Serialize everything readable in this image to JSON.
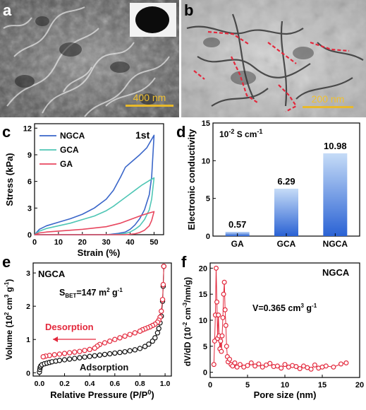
{
  "panels": {
    "a": {
      "letter": "a",
      "scalebar": "400 nm"
    },
    "b": {
      "letter": "b",
      "scalebar": "200 nm"
    },
    "c": {
      "letter": "c"
    },
    "d": {
      "letter": "d"
    },
    "e": {
      "letter": "e"
    },
    "f": {
      "letter": "f"
    }
  },
  "colors": {
    "ngca": "#3a66c9",
    "gca": "#4fc6b5",
    "ga": "#e8475f",
    "red": "#e3283c",
    "black": "#111111",
    "barLight": "#bcd6f5",
    "barDark": "#2d6ad6"
  },
  "chart_data": [
    {
      "id": "c",
      "type": "line",
      "xlabel": "Strain (%)",
      "ylabel": "Stress (kPa)",
      "xlim": [
        0,
        54
      ],
      "ylim": [
        0,
        12.5
      ],
      "xticks": [
        0,
        10,
        20,
        30,
        40,
        50
      ],
      "yticks": [
        0,
        3,
        6,
        9,
        12
      ],
      "annotation": "1st",
      "legend": [
        "NGCA",
        "GCA",
        "GA"
      ],
      "series": [
        {
          "name": "NGCA",
          "color": "#3a66c9",
          "x": [
            0,
            2,
            5,
            10,
            15,
            20,
            25,
            30,
            33,
            36,
            38,
            41,
            44,
            47,
            50,
            49,
            48,
            46,
            44,
            42,
            40,
            38,
            35,
            32,
            30,
            25,
            20,
            15,
            10,
            5,
            2,
            0
          ],
          "y": [
            0,
            0.6,
            1.0,
            1.4,
            1.8,
            2.3,
            3.0,
            4.0,
            5.0,
            6.5,
            7.6,
            8.3,
            9.0,
            9.8,
            11.2,
            6.5,
            4.5,
            2.8,
            1.8,
            1.1,
            0.6,
            0.3,
            0.15,
            0.05,
            0,
            0,
            0,
            0,
            0,
            0,
            0,
            0
          ]
        },
        {
          "name": "GCA",
          "color": "#4fc6b5",
          "x": [
            0,
            2,
            5,
            10,
            15,
            20,
            25,
            30,
            33,
            36,
            39,
            42,
            45,
            48,
            50,
            49,
            48,
            46,
            44,
            42,
            40,
            38,
            35,
            32,
            30,
            25,
            20,
            15,
            10,
            5,
            2,
            0
          ],
          "y": [
            0,
            0.4,
            0.7,
            1.0,
            1.3,
            1.7,
            2.1,
            2.7,
            3.2,
            3.8,
            4.4,
            5.0,
            5.6,
            6.1,
            6.4,
            4.0,
            2.8,
            1.7,
            1.0,
            0.6,
            0.3,
            0.15,
            0.05,
            0,
            0,
            0,
            0,
            0,
            0,
            0,
            0,
            0
          ]
        },
        {
          "name": "GA",
          "color": "#e8475f",
          "x": [
            0,
            2,
            5,
            10,
            15,
            20,
            25,
            30,
            33,
            36,
            39,
            42,
            45,
            48,
            50,
            49,
            48,
            46,
            44,
            42,
            40,
            38,
            35,
            32,
            30,
            25,
            20,
            15,
            10,
            5,
            2,
            0
          ],
          "y": [
            0,
            0.2,
            0.3,
            0.4,
            0.5,
            0.6,
            0.75,
            0.9,
            1.1,
            1.3,
            1.6,
            1.9,
            2.2,
            2.45,
            2.6,
            1.6,
            1.0,
            0.5,
            0.25,
            0.1,
            0.05,
            0,
            0,
            0,
            0,
            0,
            0,
            0,
            0,
            0,
            0,
            0
          ]
        }
      ]
    },
    {
      "id": "d",
      "type": "bar",
      "ylabel": "Electronic conductivity",
      "unit": "10",
      "unit_exp": "-2",
      "unit_rest": " S cm",
      "unit_exp2": "-1",
      "categories": [
        "GA",
        "GCA",
        "NGCA"
      ],
      "values": [
        0.57,
        6.29,
        10.98
      ],
      "value_labels": [
        "0.57",
        "6.29",
        "10.98"
      ],
      "ylim": [
        0,
        15
      ],
      "yticks": [
        0,
        5,
        10,
        15
      ]
    },
    {
      "id": "e",
      "type": "scatter",
      "xlabel": "Relative Pressure (P/P",
      "xlabel_sup": "0",
      "xlabel_end": ")",
      "ylabel": "Volume (10",
      "ylabel_sup": "2",
      "ylabel_mid": " cm",
      "ylabel_sup2": "3",
      "ylabel_mid2": " g",
      "ylabel_sup3": "-1",
      "ylabel_end": ")",
      "xlim": [
        -0.05,
        1.05
      ],
      "ylim": [
        -0.1,
        3.3
      ],
      "xticks": [
        0.0,
        0.2,
        0.4,
        0.6,
        0.8,
        1.0
      ],
      "xtick_labels": [
        "0.0",
        "0.2",
        "0.4",
        "0.6",
        "0.8",
        "1.0"
      ],
      "yticks": [
        0,
        1,
        2,
        3
      ],
      "title": "NGCA",
      "sbet_pre": "S",
      "sbet_sub": "BET",
      "sbet_mid": "=147 m",
      "sbet_sup": "2",
      "sbet_mid2": " g",
      "sbet_sup2": "-1",
      "annotations": [
        "Desorption",
        "Adsorption"
      ],
      "series": [
        {
          "name": "Adsorption",
          "color": "#111111",
          "x": [
            0.0,
            0.003,
            0.006,
            0.01,
            0.02,
            0.04,
            0.06,
            0.08,
            0.1,
            0.13,
            0.16,
            0.2,
            0.24,
            0.28,
            0.32,
            0.36,
            0.4,
            0.44,
            0.48,
            0.52,
            0.56,
            0.6,
            0.64,
            0.68,
            0.72,
            0.76,
            0.8,
            0.84,
            0.87,
            0.9,
            0.92,
            0.94,
            0.95,
            0.96,
            0.97,
            0.98,
            0.985,
            0.99
          ],
          "y": [
            0.02,
            0.1,
            0.16,
            0.2,
            0.24,
            0.27,
            0.29,
            0.31,
            0.33,
            0.35,
            0.37,
            0.39,
            0.41,
            0.43,
            0.45,
            0.47,
            0.49,
            0.51,
            0.53,
            0.55,
            0.57,
            0.59,
            0.61,
            0.63,
            0.66,
            0.69,
            0.73,
            0.79,
            0.86,
            0.95,
            1.05,
            1.2,
            1.33,
            1.5,
            1.7,
            2.15,
            2.6,
            3.2
          ]
        },
        {
          "name": "Desorption",
          "color": "#e3283c",
          "x": [
            0.99,
            0.985,
            0.98,
            0.97,
            0.96,
            0.95,
            0.94,
            0.92,
            0.9,
            0.88,
            0.86,
            0.84,
            0.82,
            0.8,
            0.76,
            0.72,
            0.68,
            0.64,
            0.6,
            0.56,
            0.52,
            0.48,
            0.46,
            0.44,
            0.4,
            0.36,
            0.32,
            0.28,
            0.24,
            0.2,
            0.16,
            0.12,
            0.08,
            0.05,
            0.03
          ],
          "y": [
            3.2,
            2.65,
            2.2,
            1.85,
            1.67,
            1.58,
            1.52,
            1.46,
            1.42,
            1.38,
            1.35,
            1.32,
            1.29,
            1.25,
            1.2,
            1.15,
            1.1,
            1.05,
            1.0,
            0.95,
            0.9,
            0.85,
            0.8,
            0.74,
            0.7,
            0.67,
            0.64,
            0.62,
            0.6,
            0.58,
            0.56,
            0.54,
            0.52,
            0.5,
            0.48
          ]
        }
      ]
    },
    {
      "id": "f",
      "type": "scatter",
      "xlabel": "Pore size (nm)",
      "ylabel": "dV/dD (10",
      "ylabel_sup": "-2",
      "ylabel_mid": " cm",
      "ylabel_sup2": "-3",
      "ylabel_end": "/nm/g)",
      "xlim": [
        0,
        20
      ],
      "ylim": [
        -1,
        21
      ],
      "xticks": [
        0,
        5,
        10,
        15,
        20
      ],
      "yticks": [
        0,
        5,
        10,
        15,
        20
      ],
      "title": "NGCA",
      "vol_pre": "V=0.365 cm",
      "vol_sup": "3",
      "vol_mid": " g",
      "vol_sup2": "-1",
      "series": [
        {
          "name": "NGCA",
          "color": "#e3283c",
          "x": [
            0.5,
            0.6,
            0.7,
            0.8,
            0.9,
            1.0,
            1.1,
            1.2,
            1.3,
            1.4,
            1.5,
            1.6,
            1.7,
            1.8,
            1.9,
            2.0,
            2.1,
            2.2,
            2.3,
            2.4,
            2.6,
            2.8,
            3.0,
            3.3,
            3.6,
            4.0,
            4.5,
            5.0,
            5.5,
            6.0,
            6.5,
            7.0,
            7.5,
            8.0,
            8.5,
            9.0,
            9.5,
            10.0,
            10.5,
            11.0,
            11.5,
            12.0,
            12.5,
            13.0,
            13.5,
            14.0,
            14.5,
            15.0,
            15.5,
            16.5,
            17.5,
            18.2
          ],
          "y": [
            1.5,
            6.0,
            11.0,
            20.0,
            13.5,
            6.5,
            11.0,
            7.0,
            4.5,
            6.0,
            4.0,
            7.0,
            10.5,
            15.0,
            17.3,
            12.0,
            9.0,
            5.0,
            3.0,
            2.0,
            2.5,
            1.5,
            1.2,
            1.8,
            1.0,
            1.5,
            1.0,
            1.3,
            1.8,
            1.2,
            1.6,
            1.0,
            1.4,
            1.7,
            1.1,
            1.2,
            0.8,
            1.5,
            1.0,
            1.3,
            1.1,
            0.7,
            1.2,
            0.9,
            0.6,
            1.4,
            0.8,
            1.0,
            1.2,
            1.0,
            1.6,
            1.8
          ]
        }
      ]
    }
  ]
}
